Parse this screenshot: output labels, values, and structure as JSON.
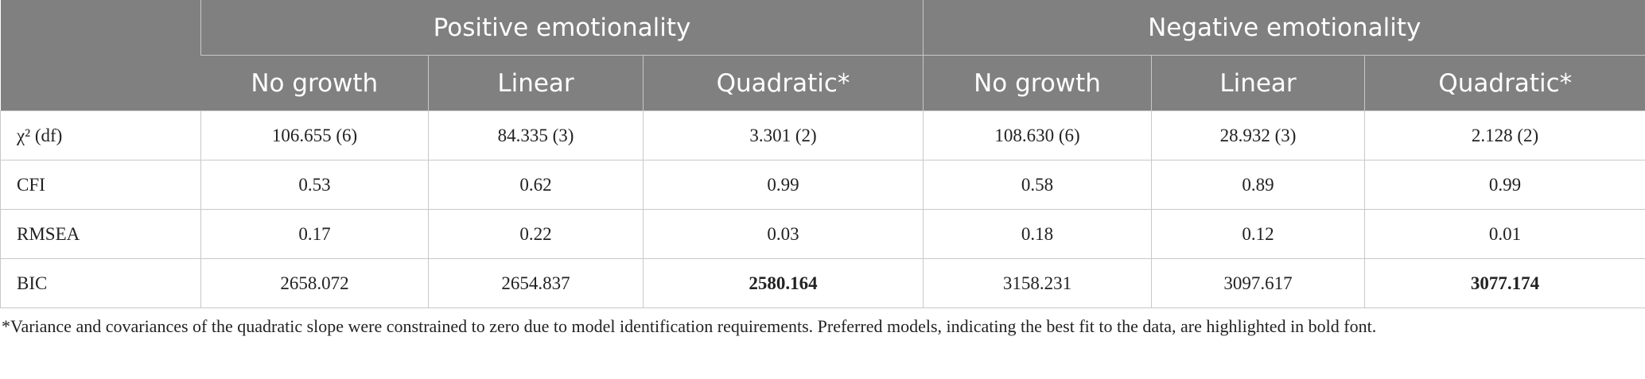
{
  "table": {
    "header_groups": [
      "Positive emotionality",
      "Negative emotionality"
    ],
    "columns": [
      "No growth",
      "Linear",
      "Quadratic*",
      "No growth",
      "Linear",
      "Quadratic*"
    ],
    "rows": [
      [
        "χ² (df)",
        "106.655 (6)",
        "84.335 (3)",
        "3.301 (2)",
        "108.630 (6)",
        "28.932 (3)",
        "2.128 (2)"
      ],
      [
        "CFI",
        "0.53",
        "0.62",
        "0.99",
        "0.58",
        "0.89",
        "0.99"
      ],
      [
        "RMSEA",
        "0.17",
        "0.22",
        "0.03",
        "0.18",
        "0.12",
        "0.01"
      ],
      [
        "BIC",
        "2658.072",
        "2654.837",
        "2580.164",
        "3158.231",
        "3097.617",
        "3077.174"
      ]
    ]
  },
  "footnote": "*Variance and covariances of the quadratic slope were constrained to zero due to model identification requirements. Preferred models, indicating the best fit to the data, are highlighted in bold font."
}
